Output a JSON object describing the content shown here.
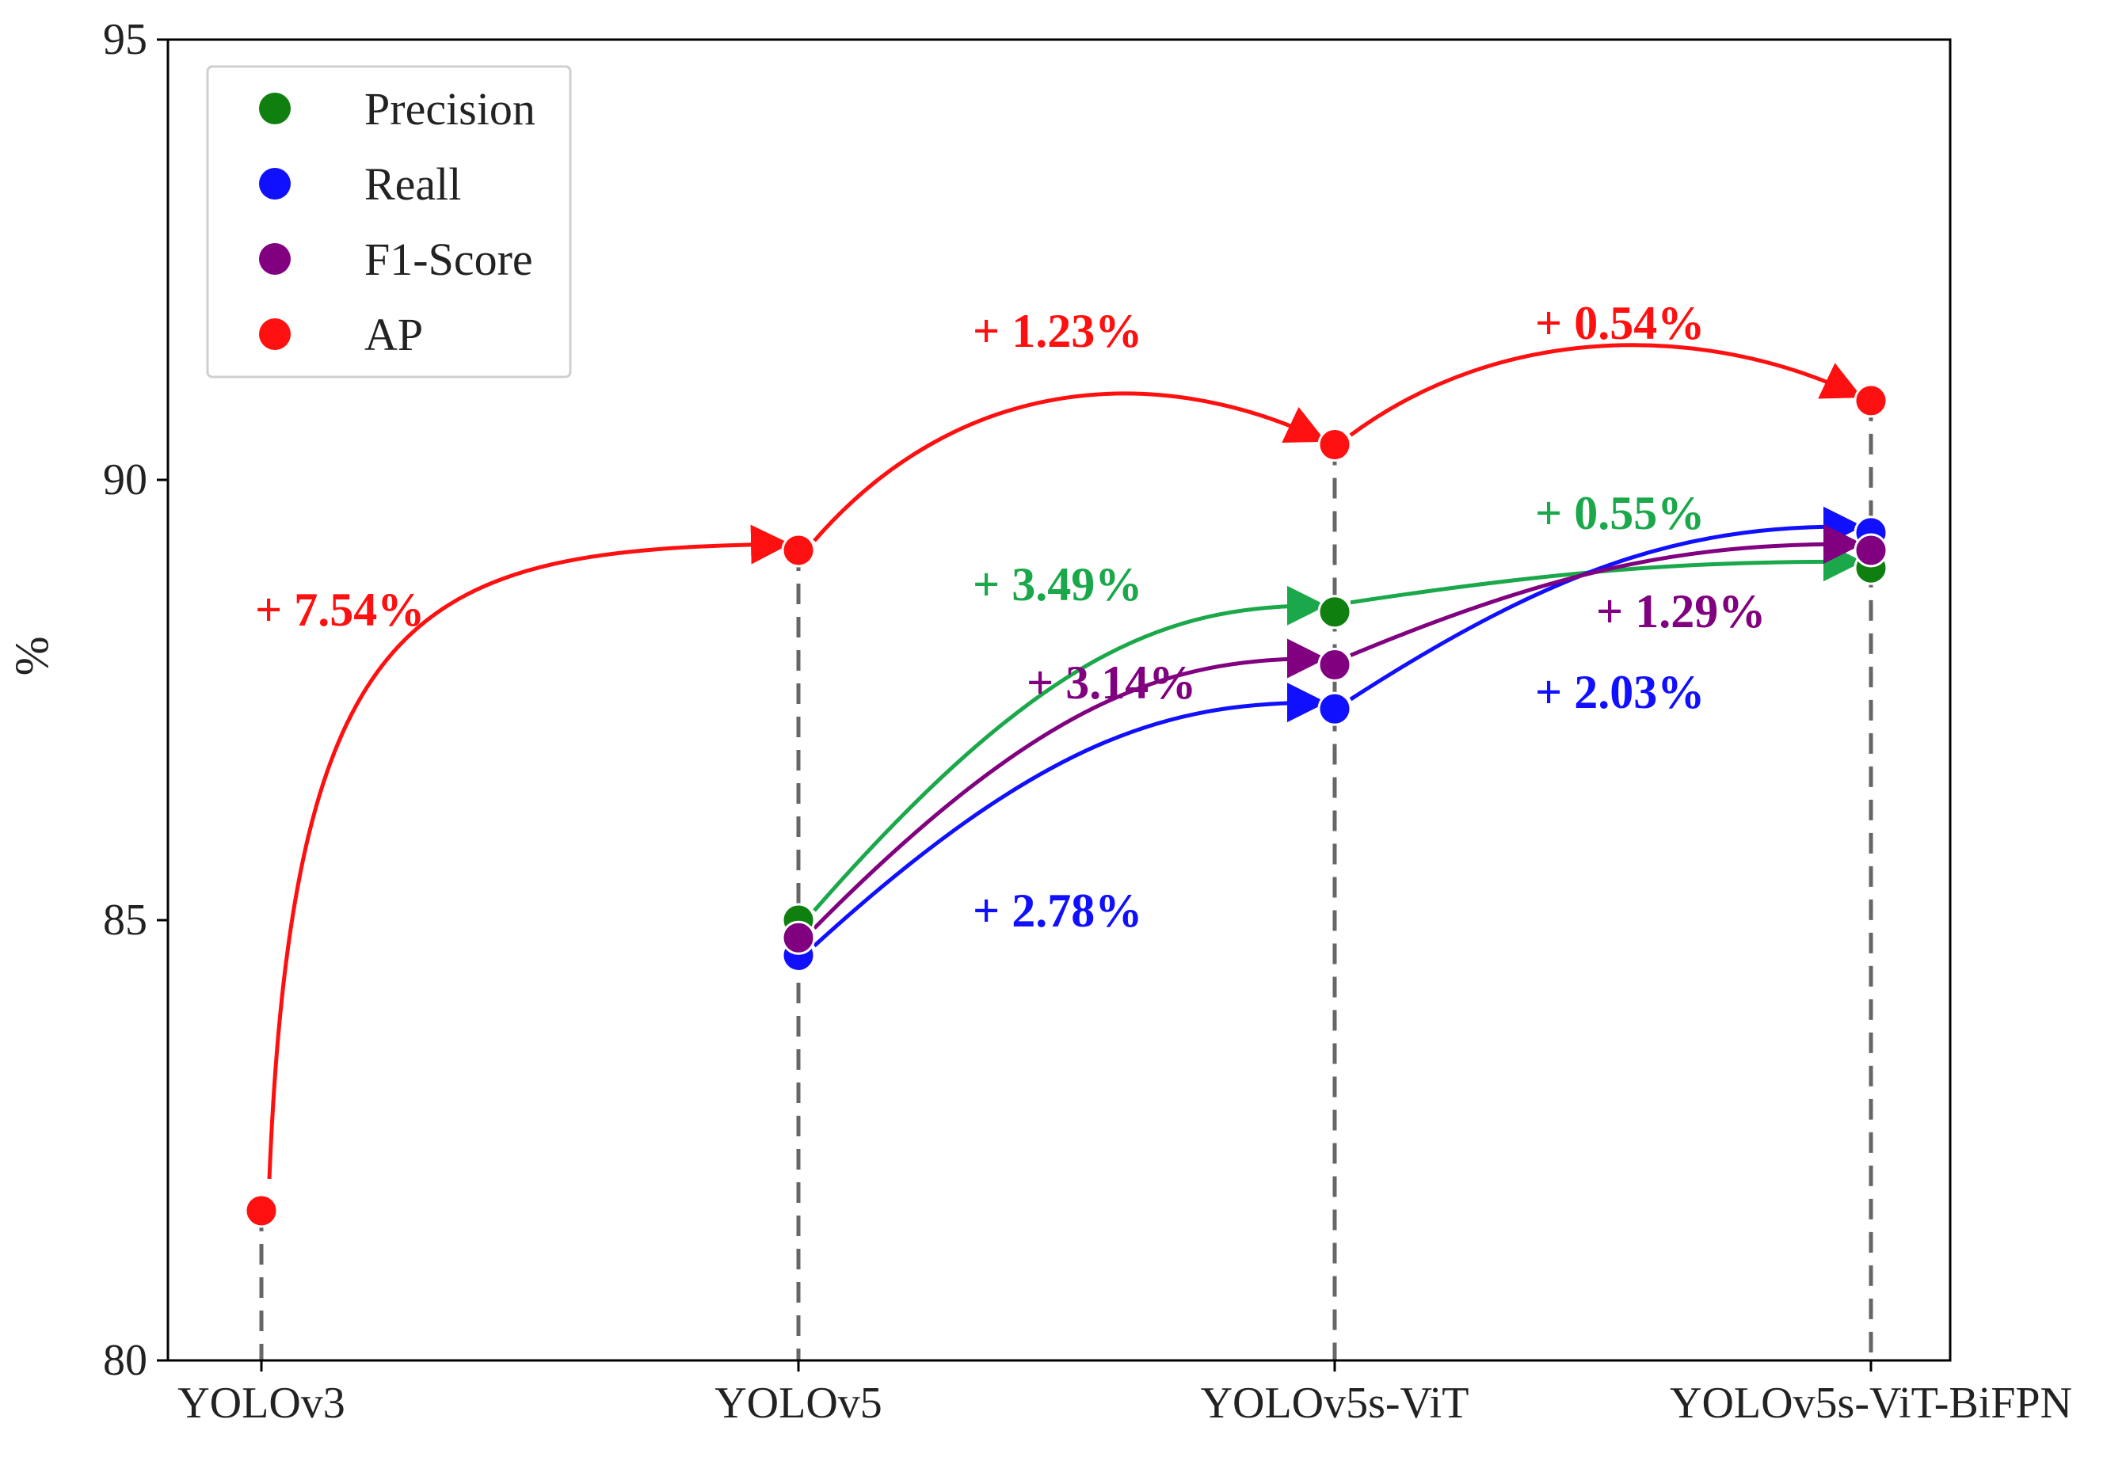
{
  "chart_data": {
    "type": "line",
    "title": "",
    "xlabel": "",
    "ylabel": "%",
    "ylim": [
      80,
      95
    ],
    "yticks": [
      "80",
      "85",
      "90",
      "95"
    ],
    "categories": [
      "YOLOv3",
      "YOLOv5",
      "YOLOv5s-ViT",
      "YOLOv5s-ViT-BiFPN"
    ],
    "grid": false,
    "legend_position": "top-left",
    "series": [
      {
        "name": "Precision",
        "color": "#0f7f0f",
        "curve_color": "#1aa84a",
        "values": [
          null,
          85.0,
          88.5,
          89.0
        ]
      },
      {
        "name": "Reall",
        "color": "#1010ff",
        "curve_color": "#1010ff",
        "values": [
          null,
          84.6,
          87.4,
          89.4
        ]
      },
      {
        "name": "F1-Score",
        "color": "#800080",
        "curve_color": "#800080",
        "values": [
          null,
          84.8,
          87.9,
          89.2
        ]
      },
      {
        "name": "AP",
        "color": "#ff1010",
        "curve_color": "#ff1010",
        "values": [
          81.7,
          89.2,
          90.4,
          90.9
        ]
      }
    ],
    "annotations": [
      {
        "text": "+ 7.54%",
        "color": "#ff1010"
      },
      {
        "text": "+ 1.23%",
        "color": "#ff1010"
      },
      {
        "text": "+ 0.54%",
        "color": "#ff1010"
      },
      {
        "text": "+ 3.49%",
        "color": "#1aa84a"
      },
      {
        "text": "+ 0.55%",
        "color": "#1aa84a"
      },
      {
        "text": "+ 3.14%",
        "color": "#800080"
      },
      {
        "text": "+ 1.29%",
        "color": "#800080"
      },
      {
        "text": "+ 2.78%",
        "color": "#1010ff"
      },
      {
        "text": "+ 2.03%",
        "color": "#1010ff"
      }
    ]
  }
}
